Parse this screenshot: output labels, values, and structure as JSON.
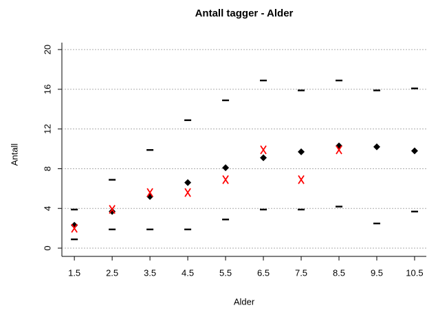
{
  "chart_data": {
    "type": "scatter",
    "title": "Antall tagger - Alder",
    "x_label": "Alder",
    "y_label": "Antall",
    "x": [
      1.5,
      2.5,
      3.5,
      4.5,
      5.5,
      6.5,
      7.5,
      8.5,
      9.5,
      10.5
    ],
    "series": [
      {
        "marker": "dash",
        "color": "#000000",
        "values": [
          3.9,
          6.9,
          9.9,
          12.9,
          14.9,
          16.9,
          15.9,
          16.9,
          15.9,
          16.1
        ]
      },
      {
        "marker": "dash",
        "color": "#000000",
        "values": [
          0.9,
          1.9,
          1.9,
          1.9,
          2.9,
          3.9,
          3.9,
          4.2,
          2.5,
          3.7
        ]
      },
      {
        "marker": "diamond",
        "color": "#000000",
        "values": [
          2.3,
          3.7,
          5.2,
          6.6,
          8.1,
          9.1,
          9.7,
          10.3,
          10.2,
          9.8
        ]
      },
      {
        "marker": "x",
        "color": "#ff0000",
        "values": [
          2.0,
          3.9,
          5.6,
          5.6,
          6.9,
          9.9,
          6.9,
          9.9,
          null,
          null
        ]
      }
    ],
    "xlim": [
      1.17,
      10.81
    ],
    "ylim": [
      -0.83,
      20.7
    ],
    "xticks": [
      1.5,
      2.5,
      3.5,
      4.5,
      5.5,
      6.5,
      7.5,
      8.5,
      9.5,
      10.5
    ],
    "yticks": [
      0,
      4,
      8,
      12,
      16,
      20
    ],
    "grid": true
  }
}
